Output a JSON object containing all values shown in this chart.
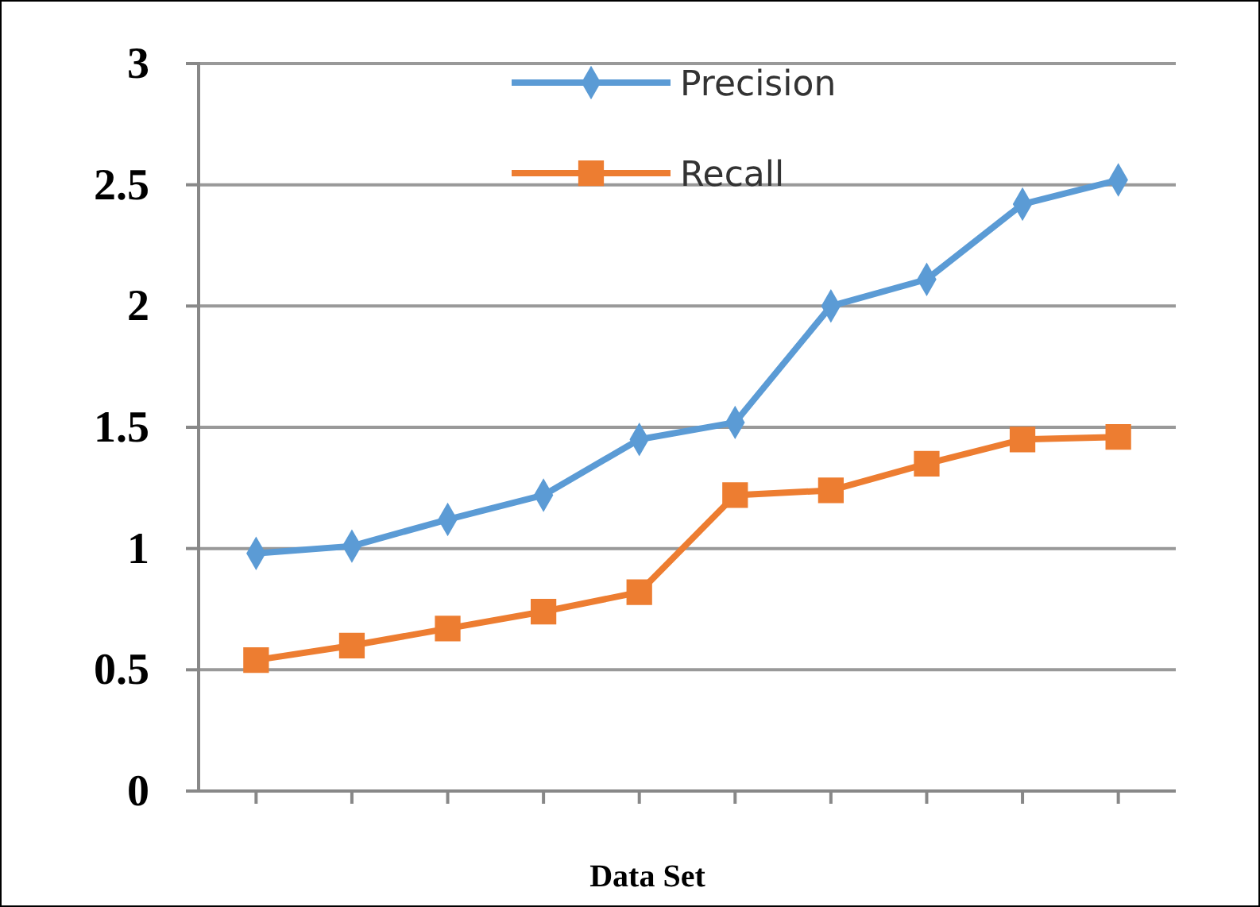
{
  "chart_data": {
    "type": "line",
    "xlabel": "Data Set",
    "categories": [
      null,
      null,
      null,
      null,
      null,
      null,
      null,
      null,
      null,
      null
    ],
    "series": [
      {
        "name": "Precision",
        "color": "#5b9bd5",
        "marker": "diamond",
        "values": [
          0.98,
          1.01,
          1.12,
          1.22,
          1.45,
          1.52,
          2.0,
          2.11,
          2.42,
          2.52
        ]
      },
      {
        "name": "Recall",
        "color": "#ed7d31",
        "marker": "square",
        "values": [
          0.54,
          0.6,
          0.67,
          0.74,
          0.82,
          1.22,
          1.24,
          1.35,
          1.45,
          1.46
        ]
      }
    ],
    "ylim": [
      0,
      3
    ],
    "yticks": [
      0,
      0.5,
      1,
      1.5,
      2,
      2.5,
      3
    ],
    "tick_labels": "y",
    "grid": "y",
    "legend": "top",
    "line_style": "solid"
  }
}
